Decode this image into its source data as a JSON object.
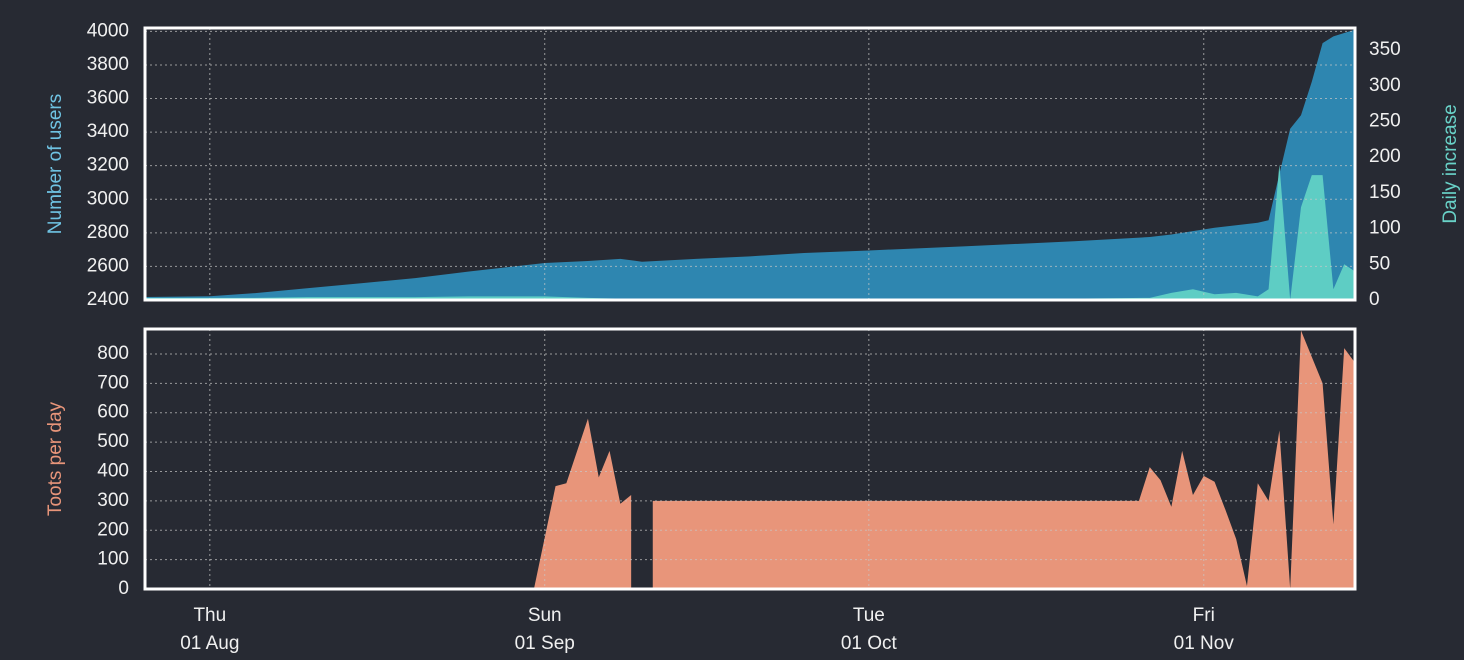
{
  "chart_data": [
    {
      "type": "area",
      "x": [
        "26 Jul",
        "01 Aug",
        "05 Aug",
        "10 Aug",
        "15 Aug",
        "20 Aug",
        "25 Aug",
        "01 Sep",
        "05 Sep",
        "08 Sep",
        "10 Sep",
        "15 Sep",
        "20 Sep",
        "25 Sep",
        "01 Oct",
        "10 Oct",
        "20 Oct",
        "27 Oct",
        "29 Oct",
        "31 Oct",
        "02 Nov",
        "04 Nov",
        "06 Nov",
        "07 Nov",
        "08 Nov",
        "09 Nov",
        "10 Nov",
        "11 Nov",
        "12 Nov",
        "13 Nov",
        "14 Nov",
        "15 Nov"
      ],
      "series": [
        {
          "name": "Number of users",
          "color": "#2e86b0",
          "axis": "y",
          "values": [
            2418,
            2422,
            2440,
            2470,
            2500,
            2530,
            2570,
            2620,
            2632,
            2645,
            2628,
            2645,
            2660,
            2680,
            2695,
            2720,
            2750,
            2775,
            2790,
            2810,
            2830,
            2845,
            2860,
            2875,
            3150,
            3420,
            3500,
            3700,
            3930,
            3970,
            3990,
            4010
          ]
        },
        {
          "name": "Daily increase",
          "color": "#5ecdc4",
          "axis": "y2",
          "values": [
            3,
            3,
            3,
            4,
            4,
            4,
            5,
            5,
            3,
            2,
            2,
            2,
            2,
            2,
            2,
            2,
            2,
            3,
            10,
            15,
            8,
            10,
            5,
            15,
            190,
            0,
            130,
            175,
            175,
            15,
            50,
            40
          ]
        }
      ],
      "xlim": [
        "26 Jul",
        "15 Nov"
      ],
      "ylim": [
        2400,
        4020
      ],
      "yticks": [
        2400,
        2600,
        2800,
        3000,
        3200,
        3400,
        3600,
        3800,
        4000
      ],
      "y2lim": [
        0,
        381
      ],
      "y2ticks": [
        0,
        50,
        100,
        150,
        200,
        250,
        300,
        350
      ],
      "grid": true
    },
    {
      "type": "area",
      "x": [
        "26 Jul",
        "31 Aug",
        "02 Sep",
        "03 Sep",
        "05 Sep",
        "06 Sep",
        "07 Sep",
        "08 Sep",
        "09 Sep",
        "10 Sep",
        "11 Sep",
        "26 Oct",
        "27 Oct",
        "28 Oct",
        "29 Oct",
        "30 Oct",
        "31 Oct",
        "01 Nov",
        "02 Nov",
        "03 Nov",
        "04 Nov",
        "05 Nov",
        "06 Nov",
        "07 Nov",
        "08 Nov",
        "09 Nov",
        "10 Nov",
        "12 Nov",
        "13 Nov",
        "14 Nov",
        "15 Nov"
      ],
      "series": [
        {
          "name": "Toots per day",
          "color": "#e8957a",
          "axis": "y",
          "values": [
            0,
            0,
            350,
            360,
            580,
            380,
            470,
            290,
            320,
            null,
            300,
            300,
            415,
            370,
            280,
            470,
            320,
            385,
            365,
            270,
            170,
            10,
            360,
            300,
            540,
            0,
            880,
            700,
            220,
            820,
            770
          ]
        }
      ],
      "xlim": [
        "26 Jul",
        "15 Nov"
      ],
      "ylim": [
        0,
        885
      ],
      "yticks": [
        0,
        100,
        200,
        300,
        400,
        500,
        600,
        700,
        800
      ],
      "xticks": [
        {
          "weekday": "Thu",
          "date": "01 Aug"
        },
        {
          "weekday": "Sun",
          "date": "01 Sep"
        },
        {
          "weekday": "Tue",
          "date": "01 Oct"
        },
        {
          "weekday": "Fri",
          "date": "01 Nov"
        }
      ],
      "grid": true
    }
  ]
}
